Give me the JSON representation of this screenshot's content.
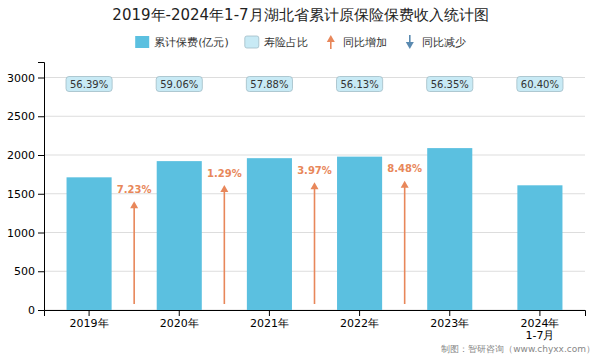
{
  "chart_data": {
    "type": "bar",
    "title": "2019年-2024年1-7月湖北省累计原保险保费收入统计图",
    "categories": [
      "2019年",
      "2020年",
      "2021年",
      "2022年",
      "2023年",
      "2024年\n1-7月"
    ],
    "series": [
      {
        "name": "累计保费(亿元)",
        "color": "#5bc0e0",
        "values": [
          1712,
          1921,
          1959,
          1979,
          2089,
          1609
        ]
      }
    ],
    "ylim": [
      0,
      3200
    ],
    "yticks": [
      0,
      500,
      1000,
      1500,
      2000,
      2500,
      3000
    ],
    "grid": true,
    "legend": "top",
    "share_labels": {
      "name": "寿险占比",
      "color": "#c8eaf5",
      "labels": [
        "56.39%",
        "59.06%",
        "57.88%",
        "56.13%",
        "56.35%",
        "60.40%"
      ]
    },
    "changes": [
      {
        "name": "同比增加",
        "color": "#e8875a",
        "direction": "up",
        "labels": [
          "7.23%",
          "1.29%",
          "3.97%",
          "8.48%"
        ]
      },
      {
        "name": "同比减少",
        "color": "#5a8ab0",
        "direction": "down",
        "labels": []
      }
    ],
    "footnote": "制图：智研咨询（www.chyxx.com）"
  }
}
